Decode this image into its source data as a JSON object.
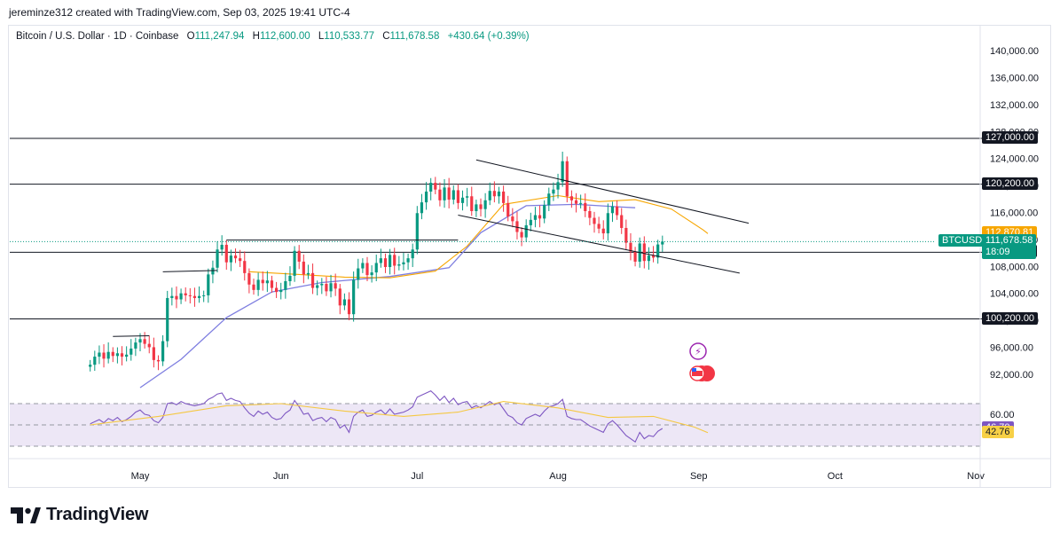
{
  "header": {
    "credit": "jereminze312 created with TradingView.com, Sep 03, 2025 19:41 UTC-4"
  },
  "legend": {
    "symbol": "Bitcoin / U.S. Dollar · 1D · Coinbase",
    "o_label": "O",
    "o_value": "111,247.94",
    "h_label": "H",
    "h_value": "112,600.00",
    "l_label": "L",
    "l_value": "110,533.77",
    "c_label": "C",
    "c_value": "111,678.58",
    "change": "+430.64 (+0.39%)"
  },
  "colors": {
    "up": "#089981",
    "down": "#f23645",
    "ma_fast": "#f7a600",
    "ma_slow": "#7e7ee0",
    "rsi": "#7e57c2",
    "rsi_ma": "#f5c842",
    "rsi_band": "#ede7f6"
  },
  "chart_data": {
    "type": "candlestick",
    "price_axis": {
      "ylim": [
        90000,
        142000
      ],
      "ticks": [
        "140,000.00",
        "136,000.00",
        "132,000.00",
        "128,000.00",
        "124,000.00",
        "120,000.00",
        "116,000.00",
        "112,000.00",
        "108,000.00",
        "104,000.00",
        "100,000.00",
        "96,000.00",
        "92,000.00"
      ]
    },
    "time_axis": {
      "labels": [
        "May",
        "Jun",
        "Jul",
        "Aug",
        "Sep",
        "Oct",
        "Nov"
      ]
    },
    "horizontal_levels": [
      {
        "value": 127000,
        "label": "127,000.00"
      },
      {
        "value": 120200,
        "label": "120,200.00"
      },
      {
        "value": 110100,
        "label": "110,100.00"
      },
      {
        "value": 100200,
        "label": "100,200.00"
      }
    ],
    "price_tags": {
      "ma_value": "112,870.81",
      "symbol": "BTCUSD",
      "last_price": "111,678.58",
      "countdown": "18:09"
    },
    "ohlc_start": "2025-04-20",
    "closes": [
      93400,
      94600,
      95200,
      94300,
      95300,
      94700,
      95100,
      94600,
      94900,
      95800,
      96700,
      97200,
      96500,
      96000,
      94100,
      93900,
      96900,
      103300,
      103600,
      103100,
      104000,
      103700,
      103600,
      103300,
      103600,
      103700,
      106800,
      107800,
      110500,
      111200,
      108600,
      109600,
      109200,
      108800,
      107000,
      105300,
      104500,
      106000,
      105500,
      105900,
      104800,
      104200,
      104500,
      105800,
      106600,
      110300,
      108700,
      106800,
      107000,
      104800,
      105200,
      105400,
      104300,
      105500,
      104700,
      102200,
      103100,
      100900,
      106000,
      107700,
      108500,
      106700,
      107100,
      108500,
      109200,
      107900,
      109700,
      108100,
      108300,
      108600,
      109200,
      110500,
      115900,
      117500,
      119100,
      120400,
      119400,
      117800,
      119700,
      117900,
      119300,
      117400,
      118200,
      118400,
      116200,
      117200,
      116500,
      117800,
      119200,
      118400,
      119100,
      117400,
      115400,
      114700,
      113100,
      112300,
      114100,
      114900,
      115600,
      115100,
      117100,
      118800,
      119400,
      120500,
      123600,
      118400,
      117800,
      117300,
      117400,
      116200,
      115200,
      114300,
      113600,
      112900,
      115900,
      116900,
      115600,
      113700,
      111500,
      110200,
      108700,
      111400,
      108800,
      109600,
      109300,
      111250,
      111680
    ],
    "ma_fast": [
      [
        "2025-05-25",
        107200
      ],
      [
        "2025-06-05",
        106800
      ],
      [
        "2025-06-15",
        106400
      ],
      [
        "2025-06-25",
        106300
      ],
      [
        "2025-07-05",
        107300
      ],
      [
        "2025-07-12",
        111000
      ],
      [
        "2025-07-20",
        117200
      ],
      [
        "2025-08-01",
        118500
      ],
      [
        "2025-08-10",
        117600
      ],
      [
        "2025-08-18",
        117900
      ],
      [
        "2025-08-26",
        116500
      ],
      [
        "2025-09-02",
        113400
      ],
      [
        "2025-09-03",
        112870
      ]
    ],
    "ma_slow": [
      [
        "2025-05-01",
        90000
      ],
      [
        "2025-05-10",
        94200
      ],
      [
        "2025-05-20",
        100400
      ],
      [
        "2025-05-30",
        104200
      ],
      [
        "2025-06-10",
        105600
      ],
      [
        "2025-06-25",
        106500
      ],
      [
        "2025-07-08",
        107800
      ],
      [
        "2025-07-15",
        113000
      ],
      [
        "2025-07-25",
        117000
      ],
      [
        "2025-08-05",
        117200
      ],
      [
        "2025-08-15",
        116800
      ],
      [
        "2025-08-18",
        116700
      ]
    ],
    "trendlines": [
      {
        "from": [
          "2025-07-14",
          123800
        ],
        "to": [
          "2025-09-12",
          114400
        ]
      },
      {
        "from": [
          "2025-07-10",
          115600
        ],
        "to": [
          "2025-09-10",
          107000
        ]
      },
      {
        "from": [
          "2025-05-20",
          111900
        ],
        "to": [
          "2025-07-10",
          111900
        ]
      },
      {
        "from": [
          "2025-05-06",
          107200
        ],
        "to": [
          "2025-05-18",
          107400
        ]
      },
      {
        "from": [
          "2025-04-25",
          97600
        ],
        "to": [
          "2025-05-03",
          97700
        ]
      }
    ],
    "rsi": {
      "ylim": [
        20,
        85
      ],
      "ticks": [
        {
          "value": 60,
          "label": "60.00"
        }
      ],
      "band": [
        30,
        70
      ],
      "rsi_value": "46.70",
      "rsi_ma_value": "42.76",
      "rsi_values": [
        51,
        53,
        55,
        52,
        56,
        54,
        57,
        53,
        55,
        58,
        62,
        64,
        60,
        59,
        54,
        52,
        57,
        70,
        71,
        69,
        72,
        70,
        69,
        68,
        69,
        70,
        74,
        76,
        79,
        80,
        73,
        75,
        73,
        72,
        66,
        61,
        58,
        63,
        60,
        62,
        57,
        55,
        56,
        61,
        64,
        73,
        67,
        60,
        61,
        54,
        56,
        57,
        53,
        57,
        55,
        47,
        50,
        43,
        58,
        62,
        64,
        58,
        59,
        62,
        64,
        60,
        65,
        60,
        61,
        62,
        64,
        67,
        76,
        78,
        80,
        82,
        78,
        73,
        77,
        71,
        75,
        69,
        71,
        72,
        66,
        68,
        66,
        69,
        72,
        69,
        71,
        65,
        59,
        57,
        52,
        50,
        56,
        58,
        60,
        58,
        63,
        67,
        68,
        70,
        74,
        58,
        56,
        55,
        55,
        52,
        49,
        47,
        45,
        43,
        51,
        54,
        50,
        45,
        40,
        37,
        34,
        43,
        37,
        40,
        39,
        44,
        46.7
      ],
      "rsi_ma_points": [
        [
          "2025-04-20",
          50
        ],
        [
          "2025-05-05",
          58
        ],
        [
          "2025-05-20",
          68
        ],
        [
          "2025-06-01",
          70
        ],
        [
          "2025-06-15",
          63
        ],
        [
          "2025-06-28",
          58
        ],
        [
          "2025-07-10",
          62
        ],
        [
          "2025-07-20",
          72
        ],
        [
          "2025-08-01",
          66
        ],
        [
          "2025-08-12",
          57
        ],
        [
          "2025-08-22",
          58
        ],
        [
          "2025-08-31",
          48
        ],
        [
          "2025-09-03",
          42.76
        ]
      ]
    }
  },
  "brand": {
    "name": "TradingView"
  }
}
